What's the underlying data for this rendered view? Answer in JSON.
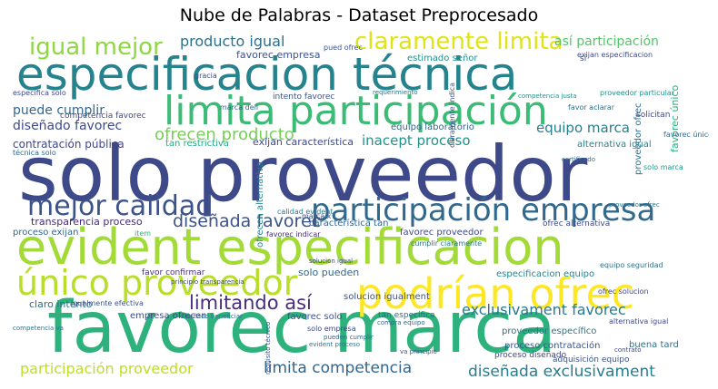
{
  "title": "Nube de Palabras - Dataset Preprocesado",
  "words": [
    {
      "text": "solo proveedor",
      "color": "#3e4989"
    },
    {
      "text": "favorec marca",
      "color": "#2db27d"
    },
    {
      "text": "evident especificacion",
      "color": "#a2da37"
    },
    {
      "text": "especificacion técnica",
      "color": "#25838e"
    },
    {
      "text": "limita participación",
      "color": "#3bbb75"
    },
    {
      "text": "podrían ofrec",
      "color": "#fde725"
    },
    {
      "text": "único proveedor",
      "color": "#b8de29"
    },
    {
      "text": "participación empresa",
      "color": "#31688e"
    },
    {
      "text": "mejor calidad",
      "color": "#3b528b"
    },
    {
      "text": "claramente limita",
      "color": "#dfe318"
    },
    {
      "text": "igual mejor",
      "color": "#8fd744"
    },
    {
      "text": "limitando así",
      "color": "#472d7b"
    },
    {
      "text": "exclusivament favorec",
      "color": "#2a788e"
    },
    {
      "text": "ofrecen producto",
      "color": "#75d054"
    },
    {
      "text": "diseñada favorec",
      "color": "#3b528b"
    },
    {
      "text": "limita competencia",
      "color": "#32658e"
    },
    {
      "text": "participación proveedor",
      "color": "#bddf26"
    },
    {
      "text": "diseñada exclusivament",
      "color": "#287c8e"
    },
    {
      "text": "producto igual",
      "color": "#2d708e"
    },
    {
      "text": "así participación",
      "color": "#52c569"
    },
    {
      "text": "equipo marca",
      "color": "#277f8e"
    },
    {
      "text": "inacept proceso",
      "color": "#21918c"
    },
    {
      "text": "diseñado favorec",
      "color": "#3e4989"
    },
    {
      "text": "puede cumplir",
      "color": "#31688e"
    },
    {
      "text": "favorec empresa",
      "color": "#3b528b"
    },
    {
      "text": "contratación pública",
      "color": "#404688"
    },
    {
      "text": "exijan característica",
      "color": "#3e4989"
    },
    {
      "text": "equipo laboratorio",
      "color": "#33638d"
    },
    {
      "text": "favorec único",
      "color": "#29af7f"
    },
    {
      "text": "proveedor ofrec",
      "color": "#2c728e"
    },
    {
      "text": "alternativa igual",
      "color": "#26828e"
    },
    {
      "text": "característica tan",
      "color": "#33638d"
    },
    {
      "text": "favorec proveedor",
      "color": "#3e4989"
    },
    {
      "text": "transparencia proceso",
      "color": "#472a7a"
    },
    {
      "text": "proceso exijan",
      "color": "#31688e"
    },
    {
      "text": "solucion igualment",
      "color": "#3b528b"
    },
    {
      "text": "claro intento",
      "color": "#2e6e8e"
    },
    {
      "text": "solo pueden",
      "color": "#31688e"
    },
    {
      "text": "especificacion equipo",
      "color": "#26828e"
    },
    {
      "text": "ofrecen alternativa",
      "color": "#25858e"
    },
    {
      "text": "favorec solo",
      "color": "#3b528b"
    },
    {
      "text": "empresa ofrecen",
      "color": "#3e4989"
    },
    {
      "text": "proveedor específico",
      "color": "#2c728e"
    },
    {
      "text": "proceso contratación",
      "color": "#39568c"
    },
    {
      "text": "buena tard",
      "color": "#2c728e"
    },
    {
      "text": "proceso diseñado",
      "color": "#3e4989"
    },
    {
      "text": "adquisición equipo",
      "color": "#3b528b"
    },
    {
      "text": "estimado señor",
      "color": "#21918c"
    },
    {
      "text": "intento favorec",
      "color": "#3b528b"
    },
    {
      "text": "competencia favorec",
      "color": "#3e4989"
    },
    {
      "text": "competencia justa",
      "color": "#21918c"
    },
    {
      "text": "ofrec solucion",
      "color": "#3e4989"
    },
    {
      "text": "calidad evident",
      "color": "#2a788e"
    },
    {
      "text": "ofrec alternativa",
      "color": "#3e4989"
    },
    {
      "text": "marca x",
      "color": "#3b528b"
    },
    {
      "text": "solo marca",
      "color": "#1f988b"
    },
    {
      "text": "tan restrictiva",
      "color": "#22a884"
    },
    {
      "text": "marca dell",
      "color": "#31688e"
    },
    {
      "text": "tan específica",
      "color": "#31688e"
    },
    {
      "text": "favorec indicar",
      "color": "#472d7b"
    },
    {
      "text": "cumplir claramente",
      "color": "#2a788e"
    },
    {
      "text": "claramente indica",
      "color": "#3b528b"
    },
    {
      "text": "favor confirmar",
      "color": "#472d7b"
    },
    {
      "text": "principio transparencia",
      "color": "#3e4989"
    },
    {
      "text": "igualmente efectiva",
      "color": "#3b528b"
    },
    {
      "text": "diseñado beneficiar",
      "color": "#2c728e"
    },
    {
      "text": "compra equipo",
      "color": "#31688e"
    },
    {
      "text": "solo empresa",
      "color": "#3e4989"
    },
    {
      "text": "evident proceso",
      "color": "#2a788e"
    },
    {
      "text": "requisito técnico",
      "color": "#3b528b"
    },
    {
      "text": "alternativa igual",
      "color": "#3e4989"
    },
    {
      "text": "solicitan",
      "color": "#3e4989"
    },
    {
      "text": "favor aclarar",
      "color": "#2c728e"
    },
    {
      "text": "favorec único",
      "color": "#31688e"
    },
    {
      "text": "proveedor particular",
      "color": "#21918c"
    },
    {
      "text": "equipo seguridad",
      "color": "#2c728e"
    },
    {
      "text": "exijan especificacion",
      "color": "#3e4989"
    },
    {
      "text": "requerimiento",
      "color": "#2c728e"
    },
    {
      "text": "gracia",
      "color": "#3e4989"
    },
    {
      "text": "técnica solo",
      "color": "#31688e"
    },
    {
      "text": "específica solo",
      "color": "#3e4989"
    },
    {
      "text": "pued ofrec",
      "color": "#3b528b"
    },
    {
      "text": "solucion igual",
      "color": "#3e4989"
    },
    {
      "text": "item",
      "color": "#2db27d"
    },
    {
      "text": "va principio",
      "color": "#3b528b"
    },
    {
      "text": "pueden cumplir",
      "color": "#31688e"
    },
    {
      "text": "competencia va",
      "color": "#2c728e"
    },
    {
      "text": "contrato",
      "color": "#3e4989"
    },
    {
      "text": "certificado",
      "color": "#31688e"
    },
    {
      "text": "proveedor ofrec",
      "color": "#2a788e"
    },
    {
      "text": "sí",
      "color": "#3e4989"
    }
  ]
}
